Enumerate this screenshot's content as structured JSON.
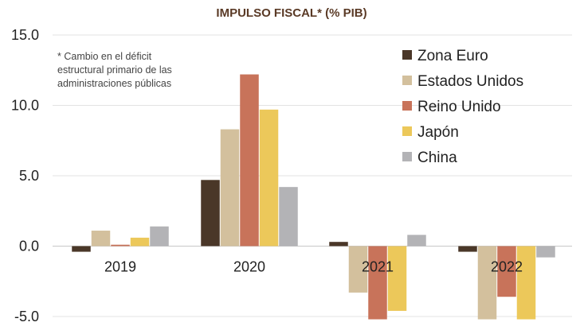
{
  "chart_data": {
    "type": "bar",
    "title": "IMPULSO FISCAL* (% PIB)",
    "note_lines": [
      "* Cambio en el déficit",
      "estructural primario de las",
      "administraciones públicas"
    ],
    "categories": [
      "2019",
      "2020",
      "2021",
      "2022"
    ],
    "series": [
      {
        "name": "Zona Euro",
        "color": "#4a3728",
        "values": [
          -0.4,
          4.7,
          0.3,
          -0.4
        ]
      },
      {
        "name": "Estados Unidos",
        "color": "#d3c09d",
        "values": [
          1.1,
          8.3,
          -3.3,
          -5.2
        ]
      },
      {
        "name": "Reino Unido",
        "color": "#c8735a",
        "values": [
          0.1,
          12.2,
          -5.2,
          -3.6
        ]
      },
      {
        "name": "Japón",
        "color": "#ecc85a",
        "values": [
          0.6,
          9.7,
          -4.6,
          -5.2
        ]
      },
      {
        "name": "China",
        "color": "#b3b3b6",
        "values": [
          1.4,
          4.2,
          0.8,
          -0.8
        ]
      }
    ],
    "ylim": [
      -5.0,
      15.0
    ],
    "yticks": [
      "15.0",
      "10.0",
      "5.0",
      "0.0",
      "-5.0"
    ],
    "grid": true,
    "legend_position": "top-right"
  }
}
